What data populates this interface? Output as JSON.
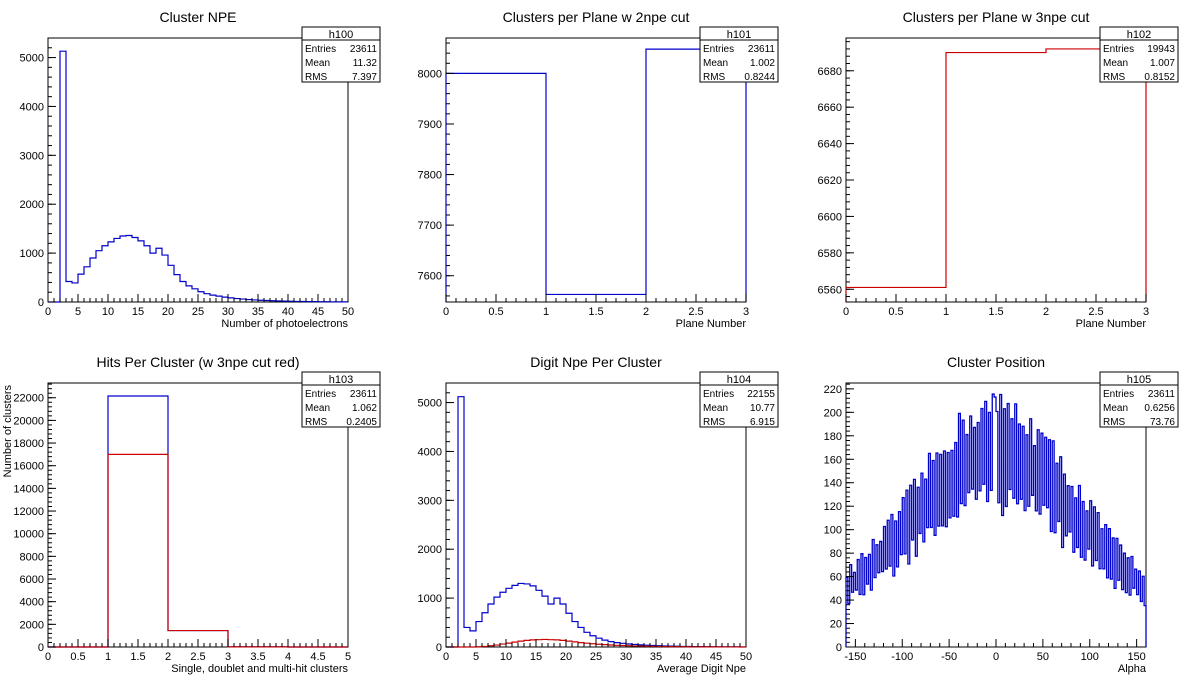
{
  "chart_data": [
    {
      "id": "h100",
      "type": "histogram",
      "title": "Cluster NPE",
      "xlabel": "Number of photoelectrons",
      "ylabel": "",
      "xlim": [
        0,
        50
      ],
      "ylim": [
        0,
        5400
      ],
      "x_ticks": [
        0,
        5,
        10,
        15,
        20,
        25,
        30,
        35,
        40,
        45,
        50
      ],
      "y_ticks": [
        0,
        1000,
        2000,
        3000,
        4000,
        5000
      ],
      "stats": {
        "name": "h100",
        "rows": [
          [
            "Entries",
            "23611"
          ],
          [
            "Mean",
            "11.32"
          ],
          [
            "RMS",
            "7.397"
          ]
        ]
      },
      "series": [
        {
          "color": "#0000cc",
          "bin_width": 1,
          "x0": 0,
          "values": [
            0,
            0,
            5130,
            420,
            390,
            570,
            720,
            900,
            1050,
            1150,
            1230,
            1300,
            1350,
            1360,
            1320,
            1250,
            1150,
            1000,
            1100,
            960,
            750,
            560,
            420,
            330,
            270,
            210,
            170,
            140,
            120,
            100,
            85,
            70,
            60,
            50,
            42,
            36,
            30,
            26,
            22,
            18,
            15,
            12,
            10,
            8,
            7,
            6,
            5,
            4,
            3,
            2
          ]
        }
      ]
    },
    {
      "id": "h101",
      "type": "histogram",
      "title": "Clusters per Plane w 2npe cut",
      "xlabel": "Plane Number",
      "ylabel": "",
      "xlim": [
        0,
        3
      ],
      "ylim": [
        7548,
        8070
      ],
      "x_ticks": [
        0,
        0.5,
        1,
        1.5,
        2,
        2.5,
        3
      ],
      "y_ticks": [
        7600,
        7700,
        7800,
        7900,
        8000
      ],
      "stats": {
        "name": "h101",
        "rows": [
          [
            "Entries",
            "23611"
          ],
          [
            "Mean",
            "1.002"
          ],
          [
            "RMS",
            "0.8244"
          ]
        ]
      },
      "series": [
        {
          "color": "#0000cc",
          "bin_width": 1,
          "x0": 0,
          "values": [
            8000,
            7563,
            8048
          ]
        }
      ]
    },
    {
      "id": "h102",
      "type": "histogram",
      "title": "Clusters per Plane w 3npe cut",
      "xlabel": "Plane Number",
      "ylabel": "",
      "xlim": [
        0,
        3
      ],
      "ylim": [
        6553,
        6698
      ],
      "x_ticks": [
        0,
        0.5,
        1,
        1.5,
        2,
        2.5,
        3
      ],
      "y_ticks": [
        6560,
        6580,
        6600,
        6620,
        6640,
        6660,
        6680
      ],
      "stats": {
        "name": "h102",
        "rows": [
          [
            "Entries",
            "19943"
          ],
          [
            "Mean",
            "1.007"
          ],
          [
            "RMS",
            "0.8152"
          ]
        ]
      },
      "series": [
        {
          "color": "#cc0000",
          "bin_width": 1,
          "x0": 0,
          "values": [
            6561,
            6690,
            6692
          ]
        }
      ]
    },
    {
      "id": "h103",
      "type": "histogram",
      "title": "Hits Per Cluster (w 3npe cut red)",
      "xlabel": "Single, doublet and multi-hit clusters",
      "ylabel": "Number of clusters",
      "xlim": [
        0,
        5
      ],
      "ylim": [
        0,
        23300
      ],
      "x_ticks": [
        0,
        0.5,
        1,
        1.5,
        2,
        2.5,
        3,
        3.5,
        4,
        4.5,
        5
      ],
      "y_ticks": [
        0,
        2000,
        4000,
        6000,
        8000,
        10000,
        12000,
        14000,
        16000,
        18000,
        20000,
        22000
      ],
      "stats": {
        "name": "h103",
        "rows": [
          [
            "Entries",
            "23611"
          ],
          [
            "Mean",
            "1.062"
          ],
          [
            "RMS",
            "0.2405"
          ]
        ]
      },
      "series": [
        {
          "color": "#0000cc",
          "bin_width": 1,
          "x0": 0,
          "values": [
            0,
            22150,
            1450,
            10,
            0
          ]
        },
        {
          "color": "#cc0000",
          "bin_width": 1,
          "x0": 0,
          "values": [
            0,
            17000,
            1450,
            10,
            0
          ]
        }
      ]
    },
    {
      "id": "h104",
      "type": "histogram",
      "title": "Digit Npe Per Cluster",
      "xlabel": "Average Digit Npe",
      "ylabel": "",
      "xlim": [
        0,
        50
      ],
      "ylim": [
        0,
        5400
      ],
      "x_ticks": [
        0,
        5,
        10,
        15,
        20,
        25,
        30,
        35,
        40,
        45,
        50
      ],
      "y_ticks": [
        0,
        1000,
        2000,
        3000,
        4000,
        5000
      ],
      "stats": {
        "name": "h104",
        "rows": [
          [
            "Entries",
            "22155"
          ],
          [
            "Mean",
            "10.77"
          ],
          [
            "RMS",
            "6.915"
          ]
        ]
      },
      "series": [
        {
          "color": "#0000cc",
          "bin_width": 1,
          "x0": 0,
          "values": [
            0,
            0,
            5120,
            400,
            330,
            520,
            700,
            880,
            1020,
            1120,
            1200,
            1260,
            1300,
            1290,
            1250,
            1160,
            1040,
            880,
            1000,
            880,
            690,
            520,
            400,
            300,
            230,
            180,
            140,
            110,
            90,
            75,
            62,
            52,
            44,
            37,
            31,
            26,
            22,
            18,
            15,
            12,
            10,
            8,
            7,
            6,
            5,
            4,
            3,
            2,
            2,
            1
          ]
        },
        {
          "color": "#cc0000",
          "bin_width": 1,
          "x0": 0,
          "values": [
            0,
            0,
            0,
            0,
            0,
            5,
            12,
            25,
            40,
            60,
            80,
            100,
            120,
            135,
            145,
            150,
            155,
            150,
            145,
            135,
            120,
            105,
            90,
            78,
            66,
            56,
            48,
            41,
            35,
            30,
            26,
            22,
            19,
            16,
            14,
            12,
            10,
            8,
            7,
            6,
            5,
            4,
            3,
            3,
            2,
            2,
            1,
            1,
            1,
            0
          ]
        }
      ]
    },
    {
      "id": "h105",
      "type": "histogram",
      "title": "Cluster Position",
      "xlabel": "Alpha",
      "ylabel": "",
      "xlim": [
        -160,
        160
      ],
      "ylim": [
        0,
        225
      ],
      "x_ticks": [
        -150,
        -100,
        -50,
        0,
        50,
        100,
        150
      ],
      "y_ticks": [
        0,
        20,
        40,
        60,
        80,
        100,
        120,
        140,
        160,
        180,
        200,
        220
      ],
      "stats": {
        "name": "h105",
        "rows": [
          [
            "Entries",
            "23611"
          ],
          [
            "Mean",
            "0.6256"
          ],
          [
            "RMS",
            "73.76"
          ]
        ]
      },
      "series": [
        {
          "color": "#0000cc",
          "style": "spiky",
          "bin_width": 2,
          "x0": -160,
          "envelope": {
            "center": 0,
            "peak": 170,
            "sigma": 85,
            "floor": 28
          },
          "spike_amplitude": 0.18
        }
      ]
    }
  ]
}
